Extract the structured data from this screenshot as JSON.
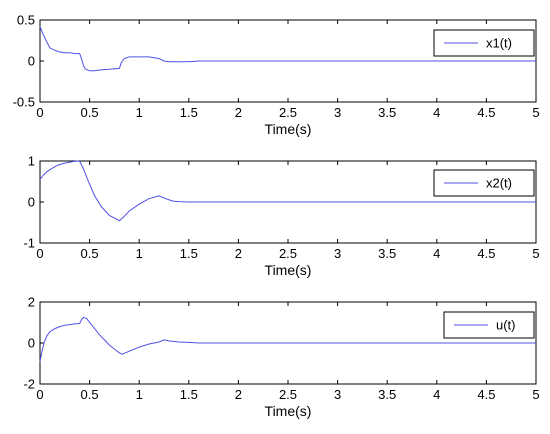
{
  "chart_data": [
    {
      "type": "line",
      "xlabel": "Time(s)",
      "ylabel": "",
      "xlim": [
        0,
        5
      ],
      "ylim": [
        -0.5,
        0.5
      ],
      "xticks": [
        "0",
        "0.5",
        "1",
        "1.5",
        "2",
        "2.5",
        "3",
        "3.5",
        "4",
        "4.5",
        "5"
      ],
      "yticks": [
        "-0.5",
        "0",
        "0.5"
      ],
      "legend_position": "top-right",
      "grid": false,
      "series": [
        {
          "name": "x1(t)",
          "color": "#5050e6",
          "x": [
            0,
            0.03,
            0.06,
            0.1,
            0.15,
            0.2,
            0.25,
            0.3,
            0.35,
            0.4,
            0.42,
            0.44,
            0.46,
            0.5,
            0.55,
            0.6,
            0.7,
            0.8,
            0.82,
            0.85,
            0.9,
            0.95,
            1.0,
            1.05,
            1.1,
            1.15,
            1.2,
            1.25,
            1.3,
            1.4,
            1.5,
            1.6,
            2.0,
            3.0,
            4.0,
            5.0
          ],
          "y": [
            0.42,
            0.33,
            0.25,
            0.16,
            0.13,
            0.11,
            0.1,
            0.1,
            0.09,
            0.09,
            0.02,
            -0.06,
            -0.1,
            -0.12,
            -0.12,
            -0.11,
            -0.1,
            -0.09,
            -0.02,
            0.03,
            0.05,
            0.05,
            0.05,
            0.05,
            0.05,
            0.04,
            0.03,
            0.0,
            -0.01,
            -0.01,
            -0.01,
            0.0,
            0.0,
            0.0,
            0.0,
            0.0
          ]
        }
      ]
    },
    {
      "type": "line",
      "xlabel": "Time(s)",
      "ylabel": "",
      "xlim": [
        0,
        5
      ],
      "ylim": [
        -1,
        1
      ],
      "xticks": [
        "0",
        "0.5",
        "1",
        "1.5",
        "2",
        "2.5",
        "3",
        "3.5",
        "4",
        "4.5",
        "5"
      ],
      "yticks": [
        "-1",
        "0",
        "1"
      ],
      "legend_position": "top-right",
      "grid": false,
      "series": [
        {
          "name": "x2(t)",
          "color": "#5050e6",
          "x": [
            0,
            0.03,
            0.07,
            0.12,
            0.18,
            0.25,
            0.32,
            0.38,
            0.4,
            0.43,
            0.48,
            0.55,
            0.62,
            0.7,
            0.78,
            0.8,
            0.85,
            0.9,
            1.0,
            1.1,
            1.2,
            1.25,
            1.3,
            1.35,
            1.4,
            1.5,
            1.6,
            1.8,
            2.0,
            2.5,
            3.0,
            3.5,
            4.0,
            4.5,
            5.0
          ],
          "y": [
            0.55,
            0.65,
            0.74,
            0.82,
            0.9,
            0.95,
            0.98,
            1.0,
            0.99,
            0.85,
            0.55,
            0.15,
            -0.12,
            -0.33,
            -0.43,
            -0.46,
            -0.35,
            -0.22,
            -0.05,
            0.08,
            0.15,
            0.1,
            0.05,
            0.02,
            0.01,
            0.0,
            0.0,
            0.0,
            0.0,
            0.0,
            0.0,
            0.0,
            0.0,
            0.0,
            0.0
          ]
        }
      ]
    },
    {
      "type": "line",
      "xlabel": "Time(s)",
      "ylabel": "",
      "xlim": [
        0,
        5
      ],
      "ylim": [
        -2,
        2
      ],
      "xticks": [
        "0",
        "0.5",
        "1",
        "1.5",
        "2",
        "2.5",
        "3",
        "3.5",
        "4",
        "4.5",
        "5"
      ],
      "yticks": [
        "-2",
        "0",
        "2"
      ],
      "legend_position": "top-right",
      "grid": false,
      "series": [
        {
          "name": "u(t)",
          "color": "#5050e6",
          "x": [
            0,
            0.02,
            0.04,
            0.07,
            0.1,
            0.15,
            0.2,
            0.25,
            0.3,
            0.35,
            0.4,
            0.42,
            0.44,
            0.47,
            0.5,
            0.55,
            0.6,
            0.65,
            0.7,
            0.75,
            0.8,
            0.83,
            0.85,
            0.9,
            1.0,
            1.1,
            1.2,
            1.25,
            1.3,
            1.4,
            1.5,
            1.6,
            2.0,
            3.0,
            4.0,
            5.0
          ],
          "y": [
            -0.9,
            -0.4,
            0.0,
            0.35,
            0.55,
            0.7,
            0.8,
            0.87,
            0.9,
            0.93,
            0.95,
            1.15,
            1.25,
            1.2,
            1.0,
            0.7,
            0.4,
            0.15,
            -0.1,
            -0.3,
            -0.48,
            -0.55,
            -0.5,
            -0.4,
            -0.2,
            -0.05,
            0.05,
            0.15,
            0.1,
            0.05,
            0.03,
            0.0,
            0.0,
            0.0,
            0.0,
            0.0
          ]
        }
      ]
    }
  ]
}
